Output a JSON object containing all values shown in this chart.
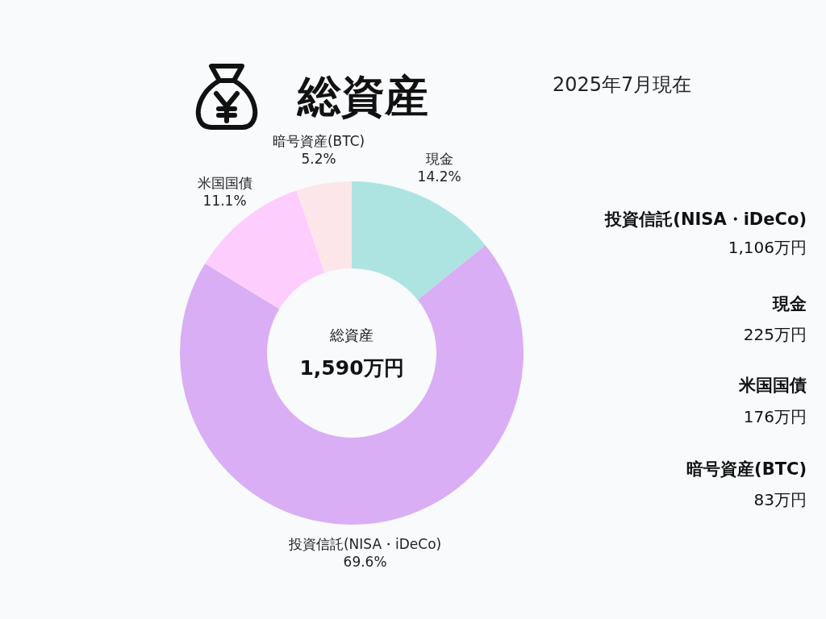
{
  "chart_data": {
    "type": "donut",
    "title": "総資産",
    "subtitle": "2025年7月現在",
    "categories": [
      "現金",
      "投資信託(NISA・iDeCo)",
      "米国国債",
      "暗号資産(BTC)"
    ],
    "values": [
      14.2,
      69.6,
      11.1,
      5.2
    ],
    "colors": [
      "#ade4e2",
      "#d9aef4",
      "#fdcdfd",
      "#fde6ea"
    ],
    "value_labels": [
      "14.2%",
      "69.6%",
      "11.1%",
      "5.2%"
    ],
    "annotations": [
      "総資産",
      "1,590万円",
      "投資信託(NISA・iDeCo)",
      "1,106万円",
      "現金",
      "225万円",
      "米国国債",
      "176万円",
      "暗号資産(BTC)",
      "83万円"
    ]
  }
}
